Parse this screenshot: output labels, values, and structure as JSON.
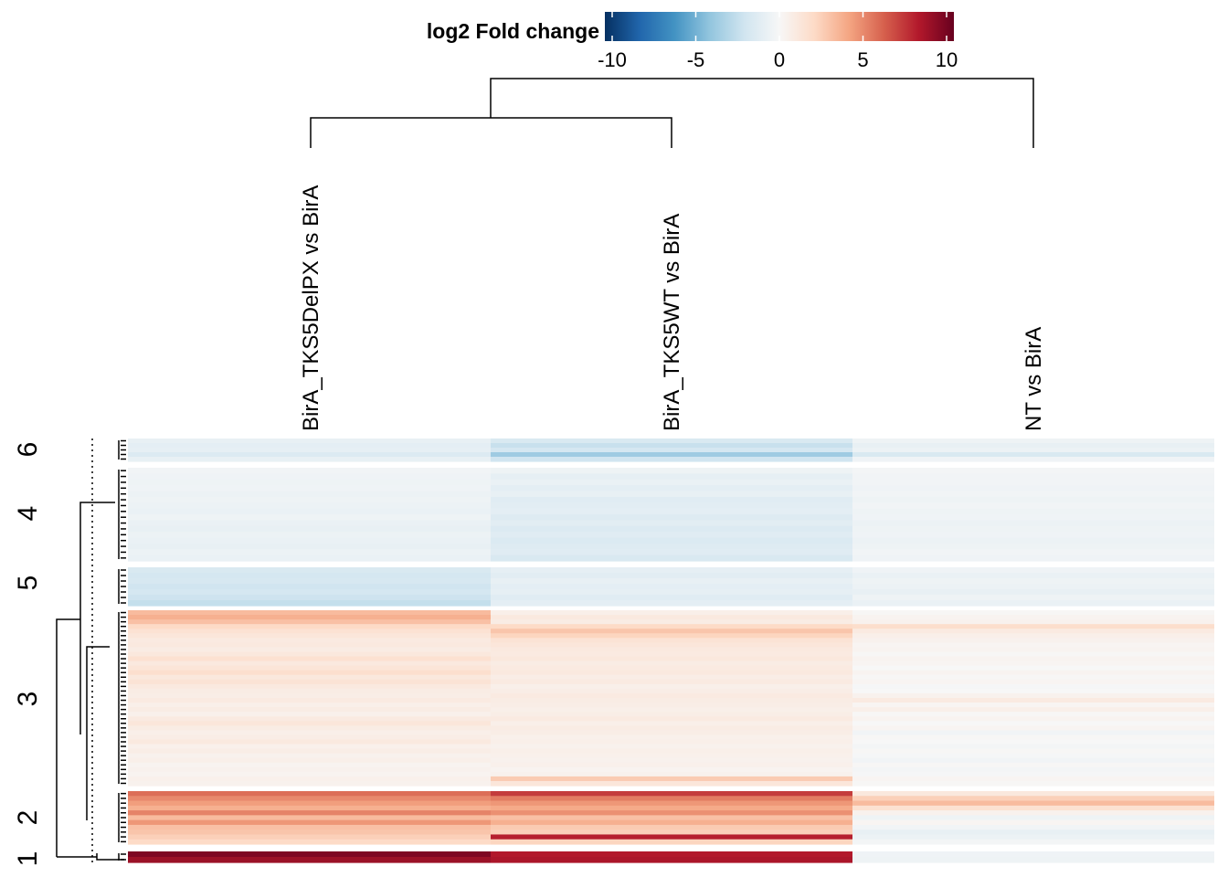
{
  "chart_data": {
    "type": "heatmap",
    "legend": {
      "title": "log2 Fold change",
      "range": [
        -10,
        10
      ],
      "ticks": [
        -10,
        -5,
        0,
        5,
        10
      ],
      "tick_labels": [
        "-10",
        "-5",
        "0",
        "5",
        "10"
      ],
      "colors": [
        "#053061",
        "#2166ac",
        "#4393c3",
        "#92c5de",
        "#d1e5f0",
        "#f7f7f7",
        "#fddbc7",
        "#f4a582",
        "#d6604d",
        "#b2182b",
        "#67001f"
      ]
    },
    "columns": [
      "BirA_TKS5DelPX vs BirA",
      "BirA_TKS5WT vs BirA",
      "NT vs BirA"
    ],
    "column_dendrogram": "cols 1 and 2 merge first, then join col 3",
    "clusters": [
      {
        "label": "6",
        "rows": [
          [
            -0.8,
            -1.6,
            -0.5
          ],
          [
            -1.0,
            -2.3,
            -0.8
          ],
          [
            -0.9,
            -1.8,
            -0.6
          ],
          [
            -1.4,
            -3.6,
            -1.6
          ],
          [
            -0.8,
            -2.0,
            -0.4
          ]
        ]
      },
      {
        "label": "4",
        "rows": [
          [
            -0.3,
            -0.5,
            -0.2
          ],
          [
            -0.4,
            -0.9,
            -0.3
          ],
          [
            -0.5,
            -0.7,
            -0.3
          ],
          [
            -0.4,
            -1.0,
            -0.4
          ],
          [
            -0.6,
            -0.8,
            -0.3
          ],
          [
            -0.5,
            -1.2,
            -0.5
          ],
          [
            -0.6,
            -1.1,
            -0.3
          ],
          [
            -0.7,
            -1.0,
            -0.5
          ],
          [
            -0.5,
            -1.3,
            -0.4
          ],
          [
            -0.7,
            -1.1,
            -0.6
          ],
          [
            -0.8,
            -1.4,
            -0.5
          ],
          [
            -0.6,
            -1.2,
            -0.4
          ],
          [
            -0.7,
            -1.5,
            -0.6
          ],
          [
            -0.8,
            -1.3,
            -0.5
          ],
          [
            -0.6,
            -1.2,
            -0.3
          ],
          [
            -0.7,
            -1.6,
            -0.4
          ]
        ]
      },
      {
        "label": "5",
        "rows": [
          [
            -1.6,
            -0.9,
            -0.4
          ],
          [
            -1.8,
            -1.1,
            -0.7
          ],
          [
            -1.7,
            -0.8,
            -0.5
          ],
          [
            -2.0,
            -1.0,
            -0.6
          ],
          [
            -1.8,
            -0.9,
            -0.8
          ],
          [
            -2.1,
            -1.2,
            -0.5
          ],
          [
            -2.4,
            -1.0,
            -0.7
          ]
        ]
      },
      {
        "label": "3",
        "rows": [
          [
            3.2,
            0.6,
            0.1
          ],
          [
            3.6,
            1.0,
            0.3
          ],
          [
            3.0,
            0.8,
            0.4
          ],
          [
            2.0,
            2.0,
            1.8
          ],
          [
            1.5,
            2.8,
            0.9
          ],
          [
            1.2,
            2.2,
            0.6
          ],
          [
            0.9,
            1.4,
            0.4
          ],
          [
            1.0,
            1.2,
            0.2
          ],
          [
            0.8,
            1.0,
            0.3
          ],
          [
            1.1,
            0.9,
            0.1
          ],
          [
            1.6,
            1.1,
            0.3
          ],
          [
            1.0,
            0.8,
            0.2
          ],
          [
            1.3,
            0.9,
            0.0
          ],
          [
            1.7,
            1.0,
            0.3
          ],
          [
            1.1,
            0.7,
            0.1
          ],
          [
            1.4,
            0.9,
            0.2
          ],
          [
            1.0,
            0.6,
            -0.1
          ],
          [
            0.8,
            0.7,
            0.0
          ],
          [
            0.7,
            0.9,
            0.4
          ],
          [
            0.9,
            0.8,
            0.9
          ],
          [
            0.6,
            0.7,
            0.2
          ],
          [
            0.8,
            0.6,
            0.6
          ],
          [
            0.5,
            0.7,
            0.1
          ],
          [
            0.9,
            0.9,
            0.3
          ],
          [
            1.2,
            0.6,
            0.0
          ],
          [
            0.8,
            0.8,
            0.2
          ],
          [
            0.6,
            0.7,
            -0.3
          ],
          [
            0.7,
            0.5,
            0.1
          ],
          [
            1.0,
            0.6,
            0.0
          ],
          [
            0.5,
            0.4,
            -0.2
          ],
          [
            0.7,
            0.6,
            0.1
          ],
          [
            0.4,
            0.5,
            -0.1
          ],
          [
            0.6,
            0.4,
            -0.3
          ],
          [
            0.3,
            0.5,
            0.1
          ],
          [
            0.4,
            0.3,
            -0.2
          ],
          [
            0.3,
            0.4,
            -0.1
          ],
          [
            0.5,
            2.6,
            0.2
          ],
          [
            0.4,
            1.2,
            0.1
          ]
        ]
      },
      {
        "label": "2",
        "rows": [
          [
            5.6,
            7.0,
            1.1
          ],
          [
            4.8,
            5.2,
            2.4
          ],
          [
            4.2,
            4.4,
            3.2
          ],
          [
            3.6,
            3.8,
            1.6
          ],
          [
            5.0,
            4.6,
            0.4
          ],
          [
            3.2,
            3.0,
            -0.5
          ],
          [
            4.4,
            3.6,
            0.2
          ],
          [
            3.0,
            2.6,
            -0.3
          ],
          [
            2.8,
            2.4,
            -0.8
          ],
          [
            2.4,
            7.8,
            -0.6
          ],
          [
            2.0,
            2.2,
            -0.2
          ]
        ]
      },
      {
        "label": "1",
        "rows": [
          [
            9.4,
            8.0,
            -0.4
          ],
          [
            8.6,
            8.2,
            -0.5
          ]
        ]
      }
    ]
  }
}
